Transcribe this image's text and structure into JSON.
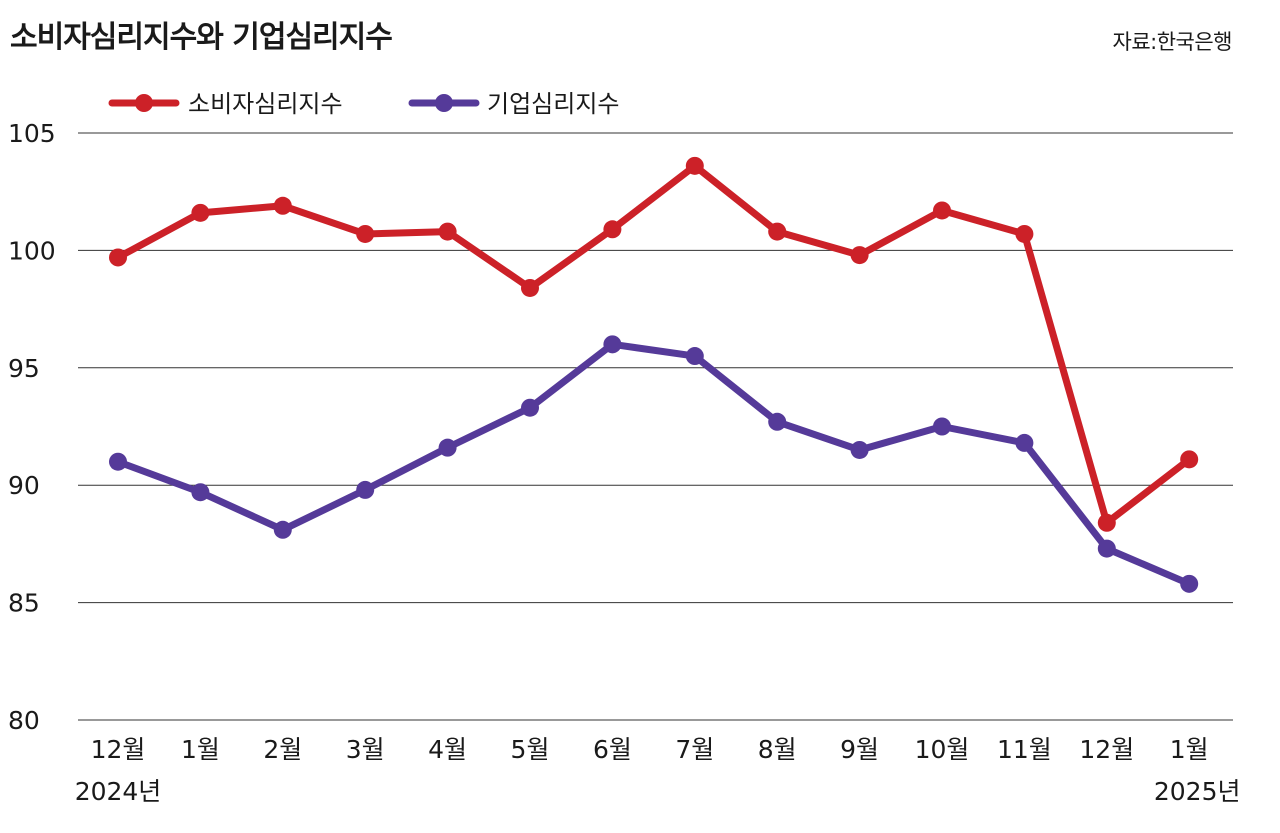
{
  "title": "소비자심리지수와 기업심리지수",
  "source": "자료:한국은행",
  "chart_data": {
    "type": "line",
    "title": "소비자심리지수와 기업심리지수",
    "categories": [
      "12월",
      "1월",
      "2월",
      "3월",
      "4월",
      "5월",
      "6월",
      "7월",
      "8월",
      "9월",
      "10월",
      "11월",
      "12월",
      "1월"
    ],
    "year_labels": [
      "2024년",
      "2025년"
    ],
    "series": [
      {
        "name": "소비자심리지수",
        "color": "#cc2128",
        "values": [
          99.7,
          101.6,
          101.9,
          100.7,
          100.8,
          98.4,
          100.9,
          103.6,
          100.8,
          99.8,
          101.7,
          100.7,
          88.4,
          91.1
        ]
      },
      {
        "name": "기업심리지수",
        "color": "#553a99",
        "values": [
          91.0,
          89.7,
          88.1,
          89.8,
          91.6,
          93.3,
          96.0,
          95.5,
          92.7,
          91.5,
          92.5,
          91.8,
          87.3,
          85.8
        ]
      }
    ],
    "yticks": [
      105,
      100,
      95,
      90,
      85,
      80
    ],
    "ylim": [
      80,
      105
    ],
    "grid": true,
    "legend_position": "top-left"
  }
}
